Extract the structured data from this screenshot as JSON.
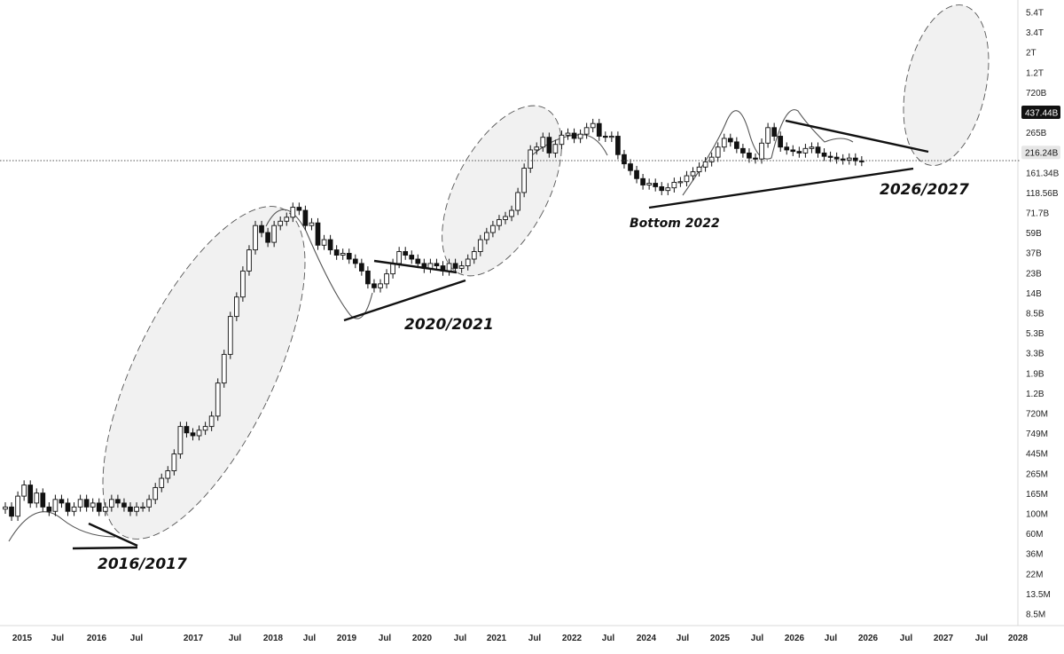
{
  "chart_data": {
    "type": "candlestick",
    "scale": "log",
    "y_axis_position": "right",
    "y_tick_labels": [
      "5.4T",
      "3.4T",
      "2T",
      "1.2T",
      "720B",
      "437.44B",
      "265B",
      "216.24B",
      "161.34B",
      "118.56B",
      "71.7B",
      "59B",
      "37B",
      "23B",
      "14B",
      "8.5B",
      "5.3B",
      "3.3B",
      "1.9B",
      "1.2B",
      "720M",
      "749M",
      "445M",
      "265M",
      "165M",
      "100M",
      "60M",
      "36M",
      "22M",
      "13.5M",
      "8.5M"
    ],
    "x_tick_labels": [
      "2015",
      "Jul",
      "2016",
      "Jul",
      "2017",
      "Jul",
      "2018",
      "Jul",
      "2019",
      "Jul",
      "2020",
      "Jul",
      "2021",
      "Jul",
      "2022",
      "Jul",
      "2024",
      "Jul",
      "2025",
      "Jul",
      "2026",
      "Jul",
      "2026",
      "Jul",
      "2027",
      "Jul",
      "2028"
    ],
    "current_price_label": "216.24B",
    "highlight_label": "437.44B",
    "annotations": [
      "2016/2017",
      "2020/2021",
      "Bottom 2022",
      "2026/2027"
    ],
    "monthly_closes_in_billions": [
      0.05,
      0.04,
      0.065,
      0.085,
      0.055,
      0.07,
      0.05,
      0.045,
      0.06,
      0.055,
      0.045,
      0.05,
      0.06,
      0.05,
      0.055,
      0.045,
      0.05,
      0.06,
      0.055,
      0.05,
      0.045,
      0.05,
      0.05,
      0.06,
      0.08,
      0.1,
      0.12,
      0.18,
      0.35,
      0.3,
      0.28,
      0.32,
      0.35,
      0.45,
      1.0,
      2.0,
      5.0,
      8.0,
      15.0,
      25.0,
      45.0,
      38.0,
      30.0,
      45.0,
      50.0,
      55.0,
      70.0,
      65.0,
      45.0,
      48.0,
      28.0,
      32.0,
      25.0,
      22.0,
      23.0,
      20.0,
      18.0,
      15.0,
      11.0,
      10.0,
      11.0,
      14.0,
      18.0,
      24.0,
      22.0,
      20.0,
      18.0,
      16.0,
      18.0,
      17.0,
      15.0,
      18.0,
      16.0,
      17.0,
      20.0,
      24.0,
      32.0,
      38.0,
      45.0,
      52.0,
      56.0,
      65.0,
      100.0,
      180.0,
      280.0,
      300.0,
      380.0,
      260.0,
      320.0,
      400.0,
      420.0,
      370.0,
      410.0,
      480.0,
      530.0,
      390.0,
      380.0,
      390.0,
      250.0,
      200.0,
      170.0,
      140.0,
      120.0,
      125.0,
      115.0,
      105.0,
      112.0,
      128.0,
      130.0,
      150.0,
      165.0,
      185.0,
      210.0,
      235.0,
      300.0,
      370.0,
      340.0,
      290.0,
      260.0,
      230.0,
      225.0,
      330.0,
      480.0,
      390.0,
      300.0,
      280.0,
      270.0,
      260.0,
      290.0,
      300.0,
      260.0,
      240.0,
      235.0,
      225.0,
      220.0,
      230.0,
      215.0,
      212.0
    ]
  }
}
